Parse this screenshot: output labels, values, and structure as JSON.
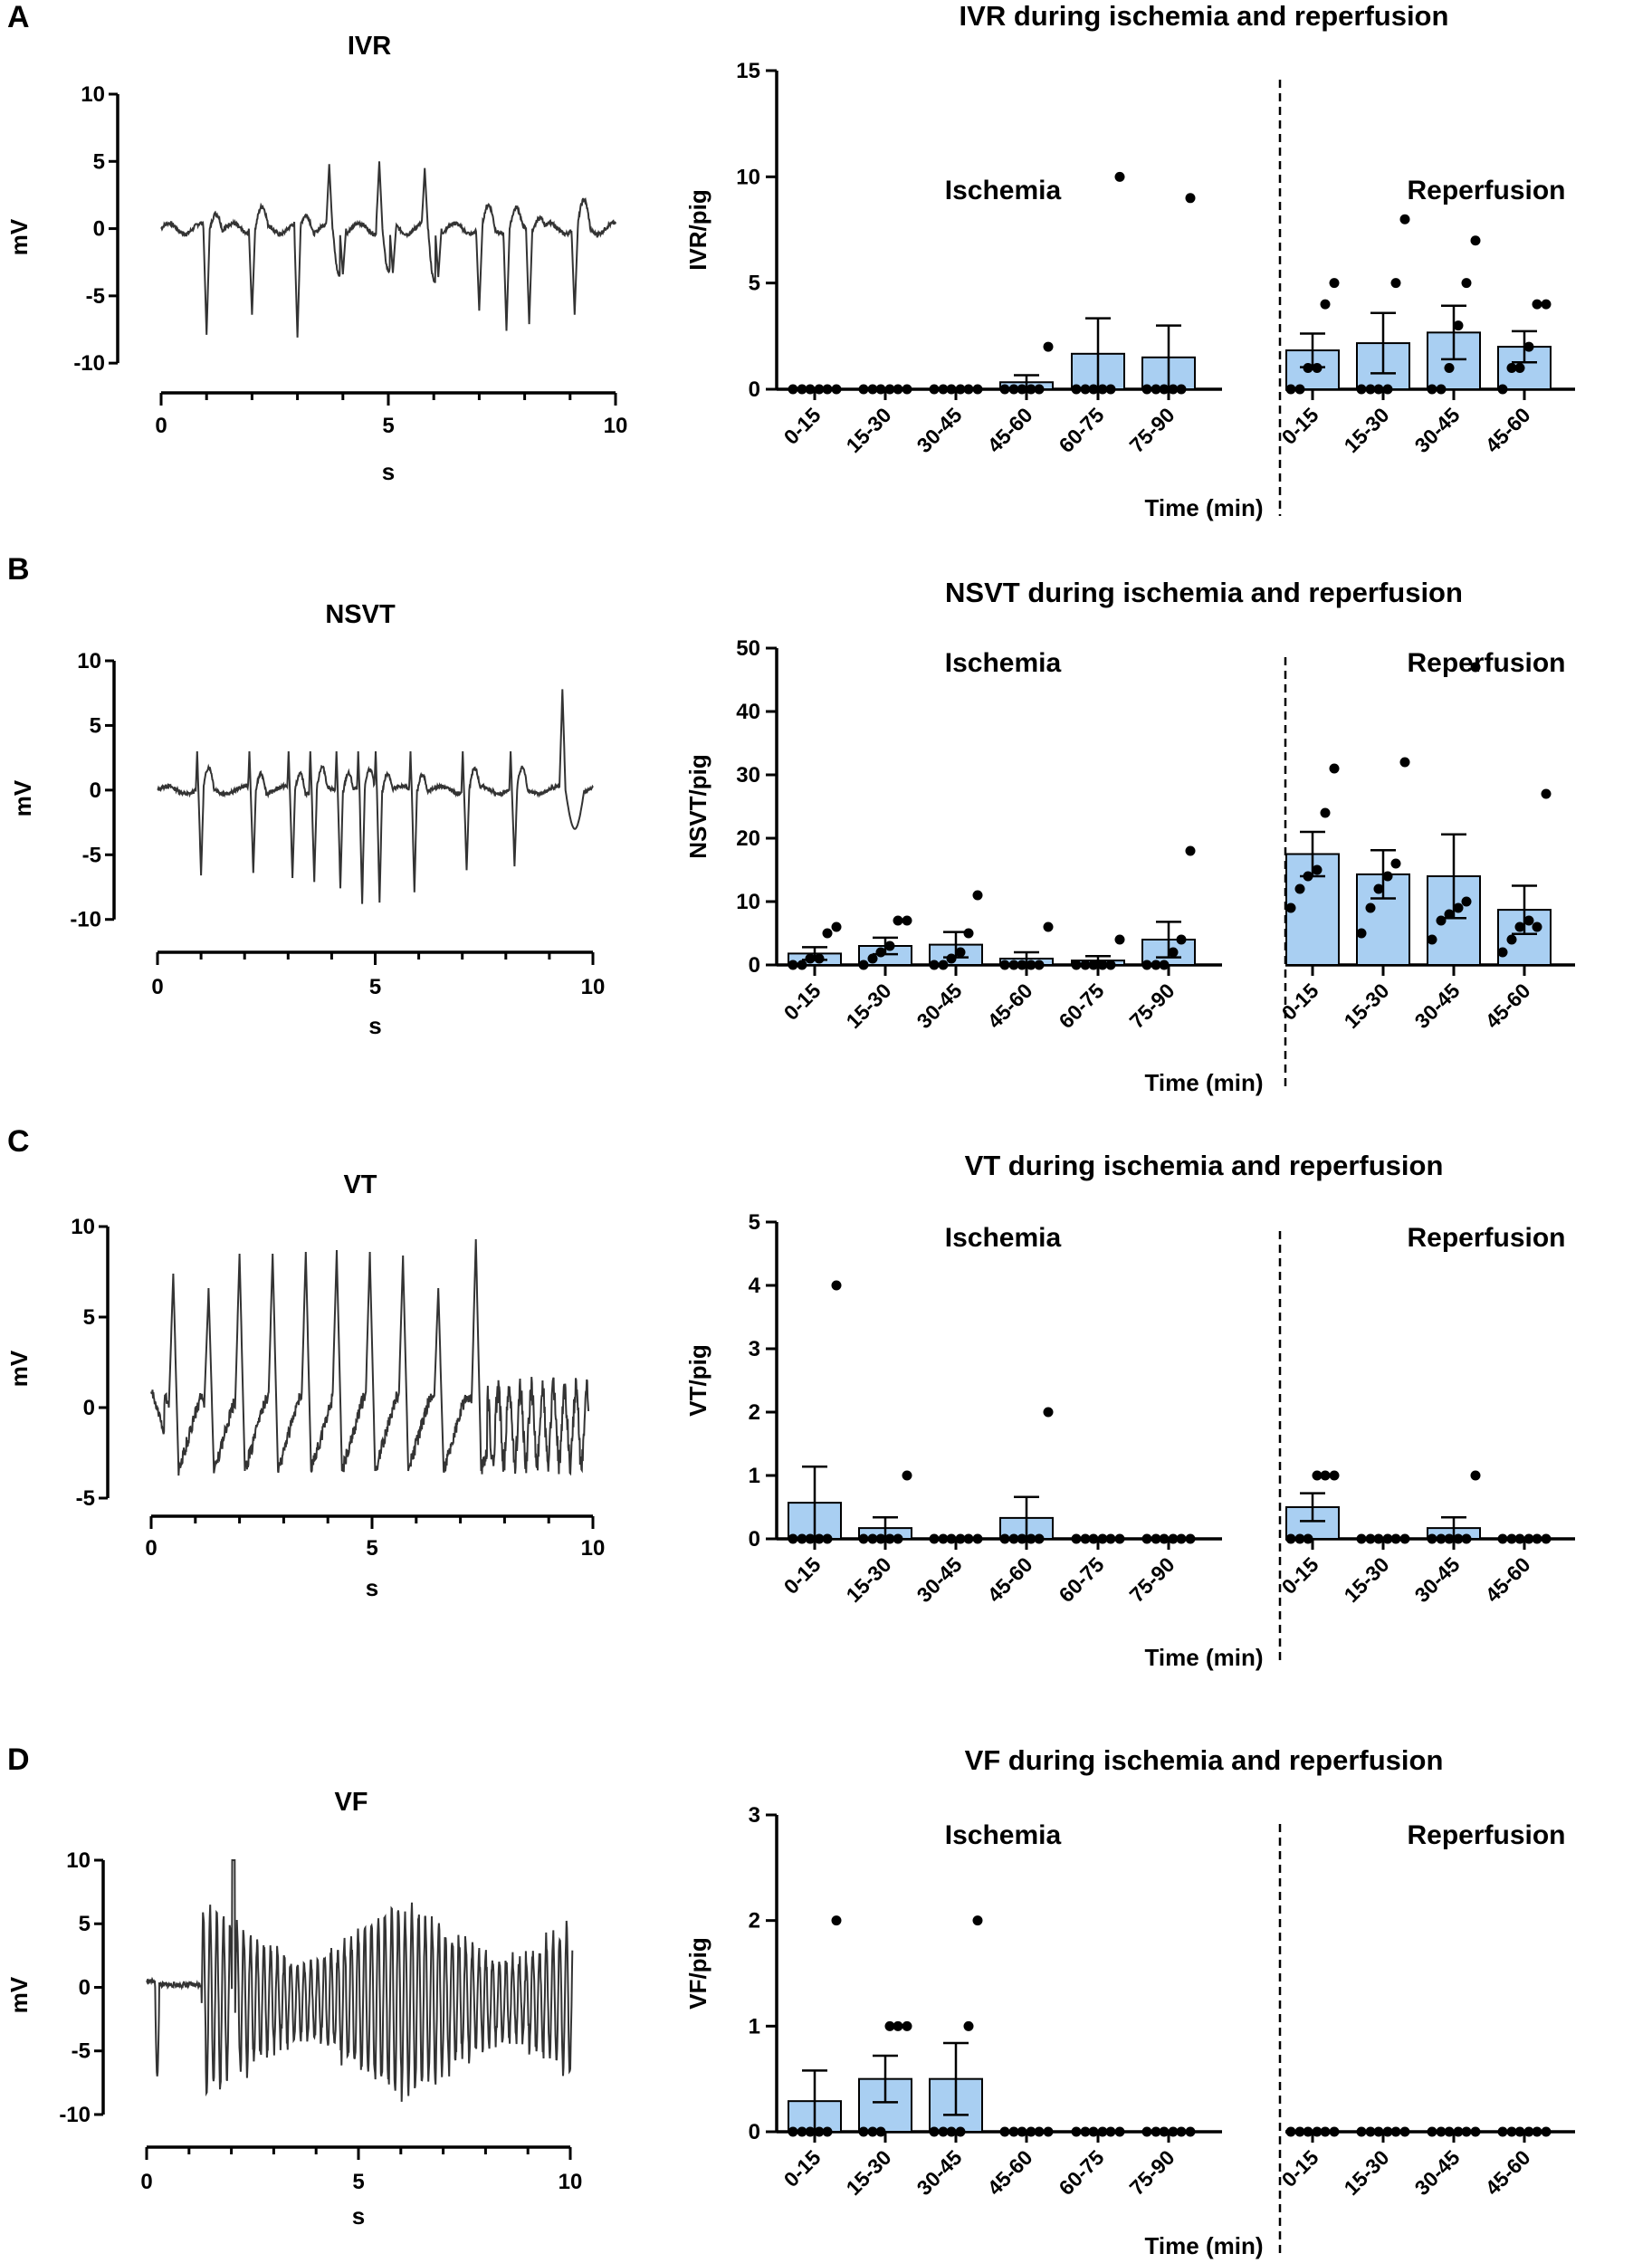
{
  "panels": [
    {
      "letter": "A",
      "trace": {
        "title": "IVR",
        "ylabel": "mV",
        "xlabel": "s",
        "yticks": [
          "10",
          "5",
          "0",
          "-5",
          "-10"
        ],
        "xticks": [
          "0",
          "5",
          "10"
        ]
      },
      "chart_data": {
        "type": "bar",
        "title": "IVR during ischemia and reperfusion",
        "ylabel": "IVR/pig",
        "xlabel": "Time (min)",
        "ylim": [
          0,
          15
        ],
        "yticks": [
          "0",
          "5",
          "10",
          "15"
        ],
        "phase_labels": [
          "Ischemia",
          "Reperfusion"
        ],
        "categories": [
          "0-15",
          "15-30",
          "30-45",
          "45-60",
          "60-75",
          "75-90",
          "0-15",
          "15-30",
          "30-45",
          "45-60"
        ],
        "phase": [
          "Ischemia",
          "Ischemia",
          "Ischemia",
          "Ischemia",
          "Ischemia",
          "Ischemia",
          "Reperfusion",
          "Reperfusion",
          "Reperfusion",
          "Reperfusion"
        ],
        "values": [
          0,
          0,
          0,
          0.33,
          1.67,
          1.5,
          1.83,
          2.17,
          2.67,
          2.0
        ],
        "sem": [
          0,
          0,
          0,
          0.33,
          1.67,
          1.5,
          0.79,
          1.42,
          1.26,
          0.73
        ],
        "points": [
          [
            0,
            0,
            0,
            0,
            0,
            0
          ],
          [
            0,
            0,
            0,
            0,
            0,
            0
          ],
          [
            0,
            0,
            0,
            0,
            0,
            0
          ],
          [
            0,
            0,
            0,
            0,
            0,
            2
          ],
          [
            0,
            0,
            0,
            0,
            0,
            10
          ],
          [
            0,
            0,
            0,
            0,
            0,
            9
          ],
          [
            0,
            0,
            1,
            1,
            4,
            5
          ],
          [
            0,
            0,
            0,
            0,
            5,
            8
          ],
          [
            0,
            0,
            1,
            3,
            5,
            7
          ],
          [
            0,
            1,
            1,
            2,
            4,
            4
          ]
        ]
      }
    },
    {
      "letter": "B",
      "trace": {
        "title": "NSVT",
        "ylabel": "mV",
        "xlabel": "s",
        "yticks": [
          "10",
          "5",
          "0",
          "-5",
          "-10"
        ],
        "xticks": [
          "0",
          "5",
          "10"
        ]
      },
      "chart_data": {
        "type": "bar",
        "title": "NSVT during ischemia and reperfusion",
        "ylabel": "NSVT/pig",
        "xlabel": "Time (min)",
        "ylim": [
          0,
          50
        ],
        "yticks": [
          "0",
          "10",
          "20",
          "30",
          "40",
          "50"
        ],
        "phase_labels": [
          "Ischemia",
          "Reperfusion"
        ],
        "categories": [
          "0-15",
          "15-30",
          "30-45",
          "45-60",
          "60-75",
          "75-90",
          "0-15",
          "15-30",
          "30-45",
          "45-60"
        ],
        "phase": [
          "Ischemia",
          "Ischemia",
          "Ischemia",
          "Ischemia",
          "Ischemia",
          "Ischemia",
          "Reperfusion",
          "Reperfusion",
          "Reperfusion",
          "Reperfusion"
        ],
        "values": [
          1.8,
          3.0,
          3.2,
          1.0,
          0.7,
          4.0,
          17.5,
          14.3,
          14.0,
          8.7
        ],
        "sem": [
          1.0,
          1.3,
          2.0,
          1.0,
          0.7,
          2.8,
          3.5,
          3.8,
          6.6,
          3.8
        ],
        "points": [
          [
            0,
            0,
            1,
            1,
            5,
            6
          ],
          [
            0,
            1,
            2,
            3,
            7,
            7
          ],
          [
            0,
            0,
            1,
            2,
            5,
            11
          ],
          [
            0,
            0,
            0,
            0,
            0,
            6
          ],
          [
            0,
            0,
            0,
            0,
            0,
            4
          ],
          [
            0,
            0,
            0,
            2,
            4,
            18
          ],
          [
            9,
            12,
            14,
            15,
            24,
            31
          ],
          [
            5,
            9,
            12,
            14,
            16,
            32
          ],
          [
            4,
            7,
            8,
            9,
            10,
            47
          ],
          [
            2,
            4,
            6,
            7,
            6,
            27
          ]
        ]
      }
    },
    {
      "letter": "C",
      "trace": {
        "title": "VT",
        "ylabel": "mV",
        "xlabel": "s",
        "yticks": [
          "10",
          "5",
          "0",
          "-5"
        ],
        "xticks": [
          "0",
          "5",
          "10"
        ]
      },
      "chart_data": {
        "type": "bar",
        "title": "VT during ischemia and reperfusion",
        "ylabel": "VT/pig",
        "xlabel": "Time (min)",
        "ylim": [
          0,
          5
        ],
        "yticks": [
          "0",
          "1",
          "2",
          "3",
          "4",
          "5"
        ],
        "phase_labels": [
          "Ischemia",
          "Reperfusion"
        ],
        "categories": [
          "0-15",
          "15-30",
          "30-45",
          "45-60",
          "60-75",
          "75-90",
          "0-15",
          "15-30",
          "30-45",
          "45-60"
        ],
        "phase": [
          "Ischemia",
          "Ischemia",
          "Ischemia",
          "Ischemia",
          "Ischemia",
          "Ischemia",
          "Reperfusion",
          "Reperfusion",
          "Reperfusion",
          "Reperfusion"
        ],
        "values": [
          0.57,
          0.17,
          0,
          0.33,
          0,
          0,
          0.5,
          0,
          0.17,
          0
        ],
        "sem": [
          0.57,
          0.17,
          0,
          0.33,
          0,
          0,
          0.22,
          0,
          0.17,
          0
        ],
        "points": [
          [
            0,
            0,
            0,
            0,
            0,
            4
          ],
          [
            0,
            0,
            0,
            0,
            0,
            1
          ],
          [
            0,
            0,
            0,
            0,
            0,
            0
          ],
          [
            0,
            0,
            0,
            0,
            0,
            2
          ],
          [
            0,
            0,
            0,
            0,
            0,
            0
          ],
          [
            0,
            0,
            0,
            0,
            0,
            0
          ],
          [
            0,
            0,
            0,
            1,
            1,
            1
          ],
          [
            0,
            0,
            0,
            0,
            0,
            0
          ],
          [
            0,
            0,
            0,
            0,
            0,
            1
          ],
          [
            0,
            0,
            0,
            0,
            0,
            0
          ]
        ]
      }
    },
    {
      "letter": "D",
      "trace": {
        "title": "VF",
        "ylabel": "mV",
        "xlabel": "s",
        "yticks": [
          "10",
          "5",
          "0",
          "-5",
          "-10"
        ],
        "xticks": [
          "0",
          "5",
          "10"
        ]
      },
      "chart_data": {
        "type": "bar",
        "title": "VF during ischemia and reperfusion",
        "ylabel": "VF/pig",
        "xlabel": "Time (min)",
        "ylim": [
          0,
          3
        ],
        "yticks": [
          "0",
          "1",
          "2",
          "3"
        ],
        "phase_labels": [
          "Ischemia",
          "Reperfusion"
        ],
        "categories": [
          "0-15",
          "15-30",
          "30-45",
          "45-60",
          "60-75",
          "75-90",
          "0-15",
          "15-30",
          "30-45",
          "45-60"
        ],
        "phase": [
          "Ischemia",
          "Ischemia",
          "Ischemia",
          "Ischemia",
          "Ischemia",
          "Ischemia",
          "Reperfusion",
          "Reperfusion",
          "Reperfusion",
          "Reperfusion"
        ],
        "values": [
          0.29,
          0.5,
          0.5,
          0,
          0,
          0,
          0,
          0,
          0,
          0
        ],
        "sem": [
          0.29,
          0.22,
          0.34,
          0,
          0,
          0,
          0,
          0,
          0,
          0
        ],
        "points": [
          [
            0,
            0,
            0,
            0,
            0,
            2
          ],
          [
            0,
            0,
            0,
            1,
            1,
            1
          ],
          [
            0,
            0,
            0,
            0,
            1,
            2
          ],
          [
            0,
            0,
            0,
            0,
            0,
            0
          ],
          [
            0,
            0,
            0,
            0,
            0,
            0
          ],
          [
            0,
            0,
            0,
            0,
            0,
            0
          ],
          [
            0,
            0,
            0,
            0,
            0,
            0
          ],
          [
            0,
            0,
            0,
            0,
            0,
            0
          ],
          [
            0,
            0,
            0,
            0,
            0,
            0
          ],
          [
            0,
            0,
            0,
            0,
            0,
            0
          ]
        ]
      }
    }
  ],
  "colors": {
    "bar_fill": "#a9cff2",
    "trace": "#333333",
    "ink": "#000000"
  }
}
